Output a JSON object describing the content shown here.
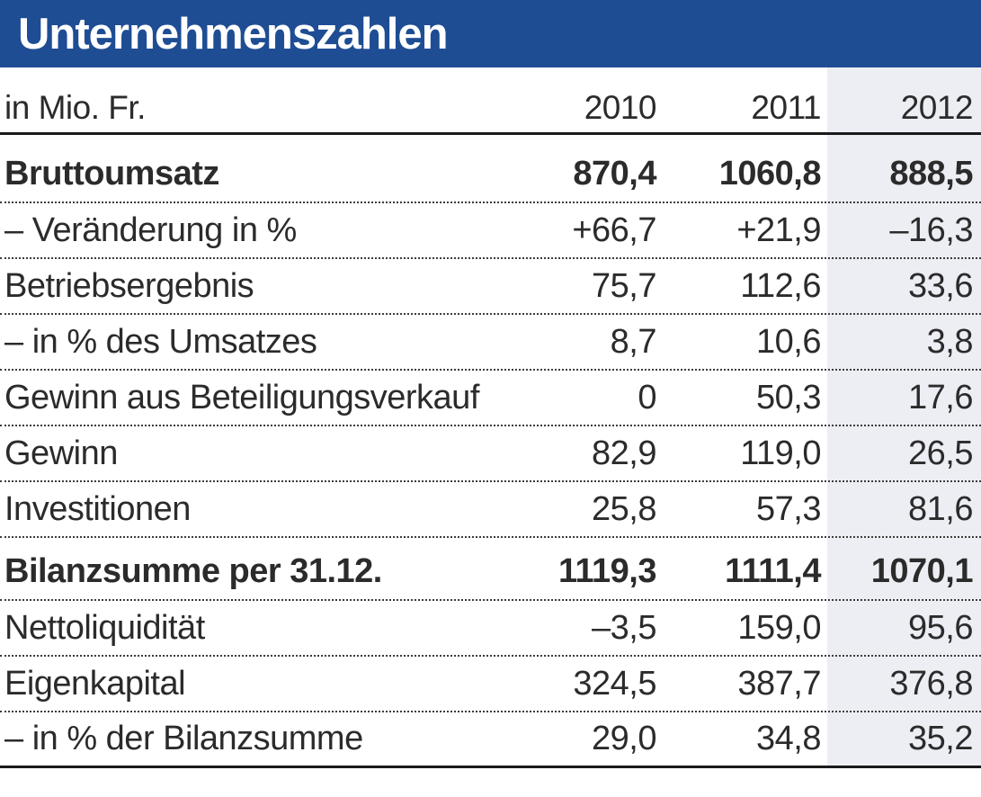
{
  "title": "Unternehmenszahlen",
  "table": {
    "unit_label": "in Mio. Fr.",
    "years": [
      "2010",
      "2011",
      "2012"
    ],
    "rows": [
      {
        "label": "Bruttoumsatz",
        "values": [
          "870,4",
          "1060,8",
          "888,5"
        ],
        "bold": true,
        "section_start": true
      },
      {
        "label": "– Veränderung in %",
        "values": [
          "+66,7",
          "+21,9",
          "–16,3"
        ]
      },
      {
        "label": "Betriebsergebnis",
        "values": [
          "75,7",
          "112,6",
          "33,6"
        ]
      },
      {
        "label": "– in % des Umsatzes",
        "values": [
          "8,7",
          "10,6",
          "3,8"
        ]
      },
      {
        "label": "Gewinn aus Beteiligungsverkauf",
        "values": [
          "0",
          "50,3",
          "17,6"
        ]
      },
      {
        "label": "Gewinn",
        "values": [
          "82,9",
          "119,0",
          "26,5"
        ]
      },
      {
        "label": "Investitionen",
        "values": [
          "25,8",
          "57,3",
          "81,6"
        ]
      },
      {
        "label": "Bilanzsumme per 31.12.",
        "values": [
          "1119,3",
          "1111,4",
          "1070,1"
        ],
        "bold": true,
        "section_start": true,
        "second_section": true
      },
      {
        "label": "Nettoliquidität",
        "values": [
          "–3,5",
          "159,0",
          "95,6"
        ]
      },
      {
        "label": "Eigenkapital",
        "values": [
          "324,5",
          "387,7",
          "376,8"
        ]
      },
      {
        "label": "– in % der Bilanzsumme",
        "values": [
          "29,0",
          "34,8",
          "35,2"
        ]
      }
    ],
    "highlighted_year": "2012"
  },
  "colors": {
    "header_bg": "#1e4d94",
    "highlight_column": "#edeef4",
    "text": "#2b2b2b",
    "rule": "#1a1a1a"
  },
  "chart_data": {
    "type": "table",
    "title": "Unternehmenszahlen",
    "unit": "in Mio. Fr.",
    "columns": [
      "2010",
      "2011",
      "2012"
    ],
    "rows": [
      {
        "label": "Bruttoumsatz",
        "values": [
          870.4,
          1060.8,
          888.5
        ]
      },
      {
        "label": "Veränderung in %",
        "values": [
          66.7,
          21.9,
          -16.3
        ]
      },
      {
        "label": "Betriebsergebnis",
        "values": [
          75.7,
          112.6,
          33.6
        ]
      },
      {
        "label": "in % des Umsatzes",
        "values": [
          8.7,
          10.6,
          3.8
        ]
      },
      {
        "label": "Gewinn aus Beteiligungsverkauf",
        "values": [
          0,
          50.3,
          17.6
        ]
      },
      {
        "label": "Gewinn",
        "values": [
          82.9,
          119.0,
          26.5
        ]
      },
      {
        "label": "Investitionen",
        "values": [
          25.8,
          57.3,
          81.6
        ]
      },
      {
        "label": "Bilanzsumme per 31.12.",
        "values": [
          1119.3,
          1111.4,
          1070.1
        ]
      },
      {
        "label": "Nettoliquidität",
        "values": [
          -3.5,
          159.0,
          95.6
        ]
      },
      {
        "label": "Eigenkapital",
        "values": [
          324.5,
          387.7,
          376.8
        ]
      },
      {
        "label": "in % der Bilanzsumme",
        "values": [
          29.0,
          34.8,
          35.2
        ]
      }
    ],
    "highlight_column": "2012",
    "layout": {
      "bold_section_rows": [
        "Bruttoumsatz",
        "Bilanzsumme per 31.12."
      ],
      "numbers_right_aligned": true
    }
  }
}
